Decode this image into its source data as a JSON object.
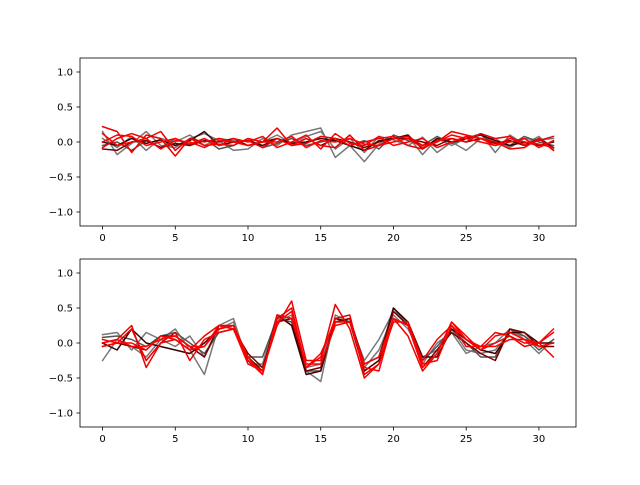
{
  "chart_data": [
    {
      "type": "line",
      "title": "",
      "xlabel": "",
      "ylabel": "",
      "xlim": [
        -1.55,
        32.55
      ],
      "ylim": [
        -1.2,
        1.2
      ],
      "xticks": [
        0,
        5,
        10,
        15,
        20,
        25,
        30
      ],
      "yticks": [
        -1.0,
        -0.5,
        0.0,
        0.5,
        1.0
      ],
      "xtick_labels": [
        "0",
        "5",
        "10",
        "15",
        "20",
        "25",
        "30"
      ],
      "ytick_labels": [
        "−1.0",
        "−0.5",
        "0.0",
        "0.5",
        "1.0"
      ],
      "grid": false,
      "x": [
        0,
        1,
        2,
        3,
        4,
        5,
        6,
        7,
        8,
        9,
        10,
        11,
        12,
        13,
        14,
        15,
        16,
        17,
        18,
        19,
        20,
        21,
        22,
        23,
        24,
        25,
        26,
        27,
        28,
        29,
        30,
        31
      ],
      "series": [
        {
          "color": "#777777",
          "values": [
            0.15,
            -0.18,
            -0.02,
            0.15,
            -0.05,
            -0.08,
            0.05,
            0.12,
            0.02,
            -0.12,
            -0.1,
            0.05,
            -0.05,
            0.1,
            0.15,
            0.2,
            -0.22,
            -0.05,
            -0.28,
            -0.03,
            0.05,
            0.08,
            -0.18,
            0.05,
            -0.05,
            0.05,
            0.12,
            -0.15,
            0.1,
            -0.03,
            0.08,
            -0.1
          ]
        },
        {
          "color": "#777777",
          "values": [
            0.05,
            -0.08,
            0.08,
            -0.12,
            0.05,
            0.0,
            0.1,
            -0.05,
            0.05,
            0.02,
            -0.05,
            0.0,
            0.1,
            -0.02,
            0.08,
            0.15,
            -0.1,
            0.05,
            -0.15,
            0.08,
            0.03,
            -0.05,
            0.07,
            -0.15,
            0.0,
            -0.12,
            0.05,
            0.05,
            -0.08,
            0.05,
            0.03,
            0.05
          ]
        },
        {
          "color": "#555555",
          "values": [
            -0.05,
            0.0,
            -0.12,
            0.02,
            -0.08,
            0.05,
            -0.05,
            0.05,
            -0.1,
            -0.05,
            0.05,
            -0.08,
            -0.02,
            0.05,
            -0.05,
            0.0,
            0.05,
            -0.05,
            0.02,
            -0.1,
            0.1,
            0.02,
            -0.05,
            0.08,
            -0.02,
            0.05,
            0.1,
            -0.02,
            -0.05,
            0.08,
            0.0,
            -0.05
          ]
        },
        {
          "color": "#3a0000",
          "values": [
            0.0,
            -0.05,
            0.05,
            -0.02,
            0.03,
            -0.05,
            0.02,
            0.15,
            -0.05,
            0.0,
            0.02,
            -0.05,
            0.05,
            -0.02,
            0.0,
            0.05,
            0.02,
            -0.05,
            -0.12,
            0.02,
            0.05,
            0.1,
            -0.1,
            0.05,
            0.0,
            0.05,
            0.1,
            0.02,
            -0.05,
            0.0,
            -0.05,
            0.0
          ]
        },
        {
          "color": "#7a0000",
          "values": [
            -0.1,
            -0.12,
            0.0,
            0.02,
            -0.08,
            -0.02,
            -0.05,
            0.02,
            0.0,
            0.05,
            -0.05,
            0.0,
            0.05,
            -0.05,
            0.05,
            -0.05,
            0.05,
            0.0,
            -0.08,
            0.0,
            0.05,
            0.05,
            0.0,
            -0.05,
            0.05,
            0.0,
            0.05,
            -0.02,
            0.02,
            -0.05,
            0.05,
            -0.08
          ]
        },
        {
          "color": "#ee0000",
          "values": [
            0.22,
            0.15,
            -0.15,
            0.1,
            0.05,
            -0.2,
            0.05,
            0.0,
            0.05,
            0.0,
            0.02,
            -0.08,
            0.05,
            -0.05,
            0.05,
            -0.05,
            -0.08,
            0.1,
            -0.12,
            -0.05,
            0.05,
            0.08,
            -0.05,
            0.0,
            0.15,
            0.1,
            0.05,
            0.0,
            -0.1,
            -0.08,
            0.05,
            -0.12
          ]
        },
        {
          "color": "#ee0000",
          "values": [
            -0.08,
            0.05,
            0.12,
            0.05,
            0.15,
            -0.12,
            0.05,
            -0.05,
            -0.03,
            -0.05,
            0.05,
            0.0,
            0.2,
            -0.05,
            -0.02,
            0.08,
            0.05,
            -0.05,
            0.0,
            0.05,
            0.08,
            -0.05,
            -0.1,
            0.02,
            0.05,
            0.0,
            0.12,
            0.05,
            0.08,
            -0.05,
            0.02,
            0.08
          ]
        },
        {
          "color": "#ff0000",
          "values": [
            0.0,
            0.1,
            0.08,
            -0.05,
            0.0,
            0.05,
            -0.03,
            0.05,
            -0.05,
            0.05,
            0.0,
            0.08,
            -0.08,
            0.0,
            0.1,
            -0.1,
            0.12,
            -0.02,
            -0.05,
            0.08,
            -0.05,
            0.0,
            0.05,
            -0.08,
            0.0,
            0.08,
            0.05,
            -0.05,
            0.0,
            0.05,
            -0.08,
            0.02
          ]
        },
        {
          "color": "#ff0000",
          "values": [
            0.12,
            -0.05,
            0.0,
            0.05,
            -0.1,
            0.02,
            0.0,
            -0.08,
            0.02,
            0.0,
            -0.05,
            0.0,
            0.0,
            0.08,
            -0.08,
            0.02,
            0.0,
            0.05,
            -0.03,
            -0.05,
            0.0,
            0.05,
            -0.08,
            0.0,
            0.1,
            0.05,
            0.0,
            -0.05,
            0.05,
            0.0,
            -0.03,
            -0.08
          ]
        }
      ]
    },
    {
      "type": "line",
      "title": "",
      "xlabel": "",
      "ylabel": "",
      "xlim": [
        -1.55,
        32.55
      ],
      "ylim": [
        -1.2,
        1.2
      ],
      "xticks": [
        0,
        5,
        10,
        15,
        20,
        25,
        30
      ],
      "yticks": [
        -1.0,
        -0.5,
        0.0,
        0.5,
        1.0
      ],
      "xtick_labels": [
        "0",
        "5",
        "10",
        "15",
        "20",
        "25",
        "30"
      ],
      "ytick_labels": [
        "−1.0",
        "−0.5",
        "0.0",
        "0.5",
        "1.0"
      ],
      "grid": false,
      "x": [
        0,
        1,
        2,
        3,
        4,
        5,
        6,
        7,
        8,
        9,
        10,
        11,
        12,
        13,
        14,
        15,
        16,
        17,
        18,
        19,
        20,
        21,
        22,
        23,
        24,
        25,
        26,
        27,
        28,
        29,
        30,
        31
      ],
      "series": [
        {
          "color": "#777777",
          "values": [
            -0.25,
            0.05,
            -0.05,
            -0.2,
            0.05,
            0.2,
            -0.1,
            -0.45,
            0.25,
            0.35,
            -0.3,
            -0.3,
            0.4,
            0.35,
            -0.4,
            -0.55,
            0.4,
            0.3,
            -0.25,
            0.05,
            0.45,
            0.3,
            -0.3,
            0.0,
            0.15,
            -0.15,
            -0.05,
            0.0,
            0.2,
            0.05,
            -0.15,
            0.05
          ]
        },
        {
          "color": "#777777",
          "values": [
            0.12,
            0.15,
            -0.1,
            0.15,
            0.05,
            -0.05,
            0.1,
            -0.2,
            0.2,
            0.3,
            -0.25,
            -0.35,
            0.3,
            0.4,
            -0.35,
            -0.3,
            0.35,
            0.3,
            -0.35,
            -0.1,
            0.4,
            0.2,
            -0.2,
            -0.1,
            0.2,
            -0.1,
            -0.15,
            -0.1,
            0.15,
            0.1,
            -0.05,
            0.0
          ]
        },
        {
          "color": "#555555",
          "values": [
            0.08,
            0.1,
            0.05,
            -0.05,
            0.1,
            0.15,
            0.0,
            -0.15,
            0.15,
            0.2,
            -0.2,
            -0.2,
            0.35,
            0.3,
            -0.4,
            -0.4,
            0.3,
            0.35,
            -0.3,
            -0.2,
            0.5,
            0.25,
            -0.25,
            -0.05,
            0.2,
            0.0,
            -0.2,
            -0.2,
            0.2,
            0.1,
            -0.1,
            0.05
          ]
        },
        {
          "color": "#3a0000",
          "values": [
            0.0,
            -0.1,
            0.2,
            0.0,
            -0.05,
            -0.1,
            -0.15,
            0.0,
            0.2,
            0.25,
            -0.2,
            -0.4,
            0.4,
            0.25,
            -0.45,
            -0.4,
            0.35,
            0.3,
            -0.4,
            -0.25,
            0.5,
            0.3,
            -0.2,
            -0.2,
            0.2,
            0.05,
            -0.1,
            -0.15,
            0.15,
            0.15,
            0.0,
            0.0
          ]
        },
        {
          "color": "#7a0000",
          "values": [
            -0.05,
            0.0,
            -0.05,
            -0.1,
            0.1,
            0.1,
            -0.05,
            -0.2,
            0.25,
            0.2,
            -0.15,
            -0.35,
            0.3,
            0.35,
            -0.4,
            -0.35,
            0.3,
            0.35,
            -0.3,
            -0.2,
            0.45,
            0.25,
            -0.35,
            -0.1,
            0.15,
            0.0,
            -0.15,
            -0.25,
            0.2,
            0.15,
            -0.05,
            -0.05
          ]
        },
        {
          "color": "#ee0000",
          "values": [
            0.0,
            0.05,
            0.25,
            -0.35,
            0.0,
            0.15,
            -0.25,
            0.05,
            0.15,
            0.2,
            -0.25,
            -0.45,
            0.35,
            0.5,
            -0.35,
            -0.2,
            0.35,
            0.4,
            -0.45,
            -0.3,
            0.35,
            0.1,
            -0.4,
            -0.15,
            0.3,
            0.05,
            -0.1,
            0.0,
            0.1,
            -0.05,
            0.0,
            -0.2
          ]
        },
        {
          "color": "#ee0000",
          "values": [
            0.05,
            0.0,
            0.2,
            -0.25,
            0.0,
            0.05,
            -0.1,
            0.1,
            0.25,
            0.25,
            -0.25,
            -0.4,
            0.25,
            0.6,
            -0.25,
            -0.25,
            0.55,
            0.2,
            -0.5,
            -0.3,
            0.3,
            0.3,
            -0.25,
            0.05,
            0.25,
            -0.05,
            -0.05,
            0.15,
            0.1,
            0.0,
            0.0,
            0.15
          ]
        },
        {
          "color": "#ff0000",
          "values": [
            0.0,
            0.05,
            -0.05,
            -0.05,
            0.05,
            0.1,
            -0.05,
            -0.05,
            0.2,
            0.25,
            -0.2,
            -0.45,
            0.4,
            0.35,
            -0.3,
            -0.3,
            0.25,
            0.3,
            -0.35,
            -0.4,
            0.35,
            0.25,
            -0.3,
            -0.25,
            0.25,
            0.05,
            -0.05,
            -0.05,
            0.05,
            0.05,
            -0.05,
            0.0
          ]
        },
        {
          "color": "#ff0000",
          "values": [
            -0.05,
            0.0,
            0.0,
            -0.1,
            0.1,
            0.05,
            -0.1,
            -0.05,
            0.25,
            0.2,
            -0.3,
            -0.4,
            0.3,
            0.45,
            -0.35,
            -0.15,
            0.3,
            0.3,
            -0.3,
            -0.2,
            0.35,
            0.25,
            -0.35,
            -0.15,
            0.3,
            0.1,
            -0.1,
            0.1,
            0.15,
            0.05,
            0.0,
            0.2
          ]
        }
      ]
    }
  ]
}
